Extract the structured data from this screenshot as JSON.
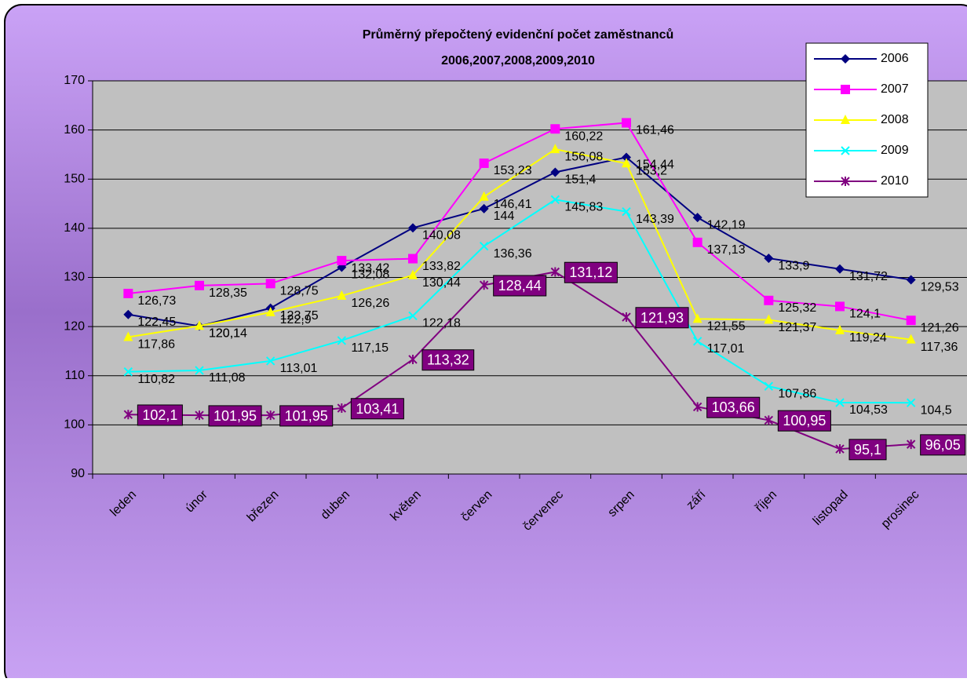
{
  "chart_data": {
    "type": "line",
    "title": "Průměrný přepočtený evidenční počet zaměstnanců",
    "subtitle": "2006,2007,2008,2009,2010",
    "categories": [
      "leden",
      "únor",
      "březen",
      "duben",
      "květen",
      "červen",
      "červenec",
      "srpen",
      "září",
      "říjen",
      "listopad",
      "prosinec"
    ],
    "ylim": [
      90,
      170
    ],
    "yticks": [
      90,
      100,
      110,
      120,
      130,
      140,
      150,
      160,
      170
    ],
    "grid": true,
    "legend": "top-right",
    "series": [
      {
        "name": "2006",
        "color": "#000080",
        "values": [
          122.45,
          120.1,
          123.75,
          132.08,
          140.08,
          144,
          151.4,
          154.44,
          142.19,
          133.9,
          131.72,
          129.53
        ],
        "value_labels": [
          "122,45",
          "120,1",
          "123,75",
          "132,08",
          "140,08",
          "144",
          "151,4",
          "154,44",
          "142,19",
          "133,9",
          "131,72",
          "129,53"
        ]
      },
      {
        "name": "2007",
        "color": "#ff00ff",
        "values": [
          126.73,
          128.35,
          128.75,
          133.42,
          133.82,
          153.23,
          160.22,
          161.46,
          137.13,
          125.32,
          124.1,
          121.26
        ],
        "value_labels": [
          "126,73",
          "128,35",
          "128,75",
          "133,42",
          "133,82",
          "153,23",
          "160,22",
          "161,46",
          "137,13",
          "125,32",
          "124,1",
          "121,26"
        ]
      },
      {
        "name": "2008",
        "color": "#ffff00",
        "values": [
          117.86,
          120.14,
          122.9,
          126.26,
          130.44,
          146.41,
          156.08,
          153.2,
          121.55,
          121.37,
          119.24,
          117.36
        ],
        "value_labels": [
          "117,86",
          "120,14",
          "122,9",
          "126,26",
          "130,44",
          "146,41",
          "156,08",
          "153,2",
          "121,55",
          "121,37",
          "119,24",
          "117,36"
        ]
      },
      {
        "name": "2009",
        "color": "#00ffff",
        "values": [
          110.82,
          111.08,
          113.01,
          117.15,
          122.18,
          136.36,
          145.83,
          143.39,
          117.01,
          107.86,
          104.53,
          104.5
        ],
        "value_labels": [
          "110,82",
          "111,08",
          "113,01",
          "117,15",
          "122,18",
          "136,36",
          "145,83",
          "143,39",
          "117,01",
          "107,86",
          "104,53",
          "104,5"
        ]
      },
      {
        "name": "2010",
        "color": "#800080",
        "values": [
          102.1,
          101.95,
          101.95,
          103.41,
          113.32,
          128.44,
          131.12,
          121.93,
          103.66,
          100.95,
          95.1,
          96.05
        ],
        "value_labels": [
          "102,1",
          "101,95",
          "101,95",
          "103,41",
          "113,32",
          "128,44",
          "131,12",
          "121,93",
          "103,66",
          "100,95",
          "95,1",
          "96,05"
        ]
      }
    ]
  }
}
